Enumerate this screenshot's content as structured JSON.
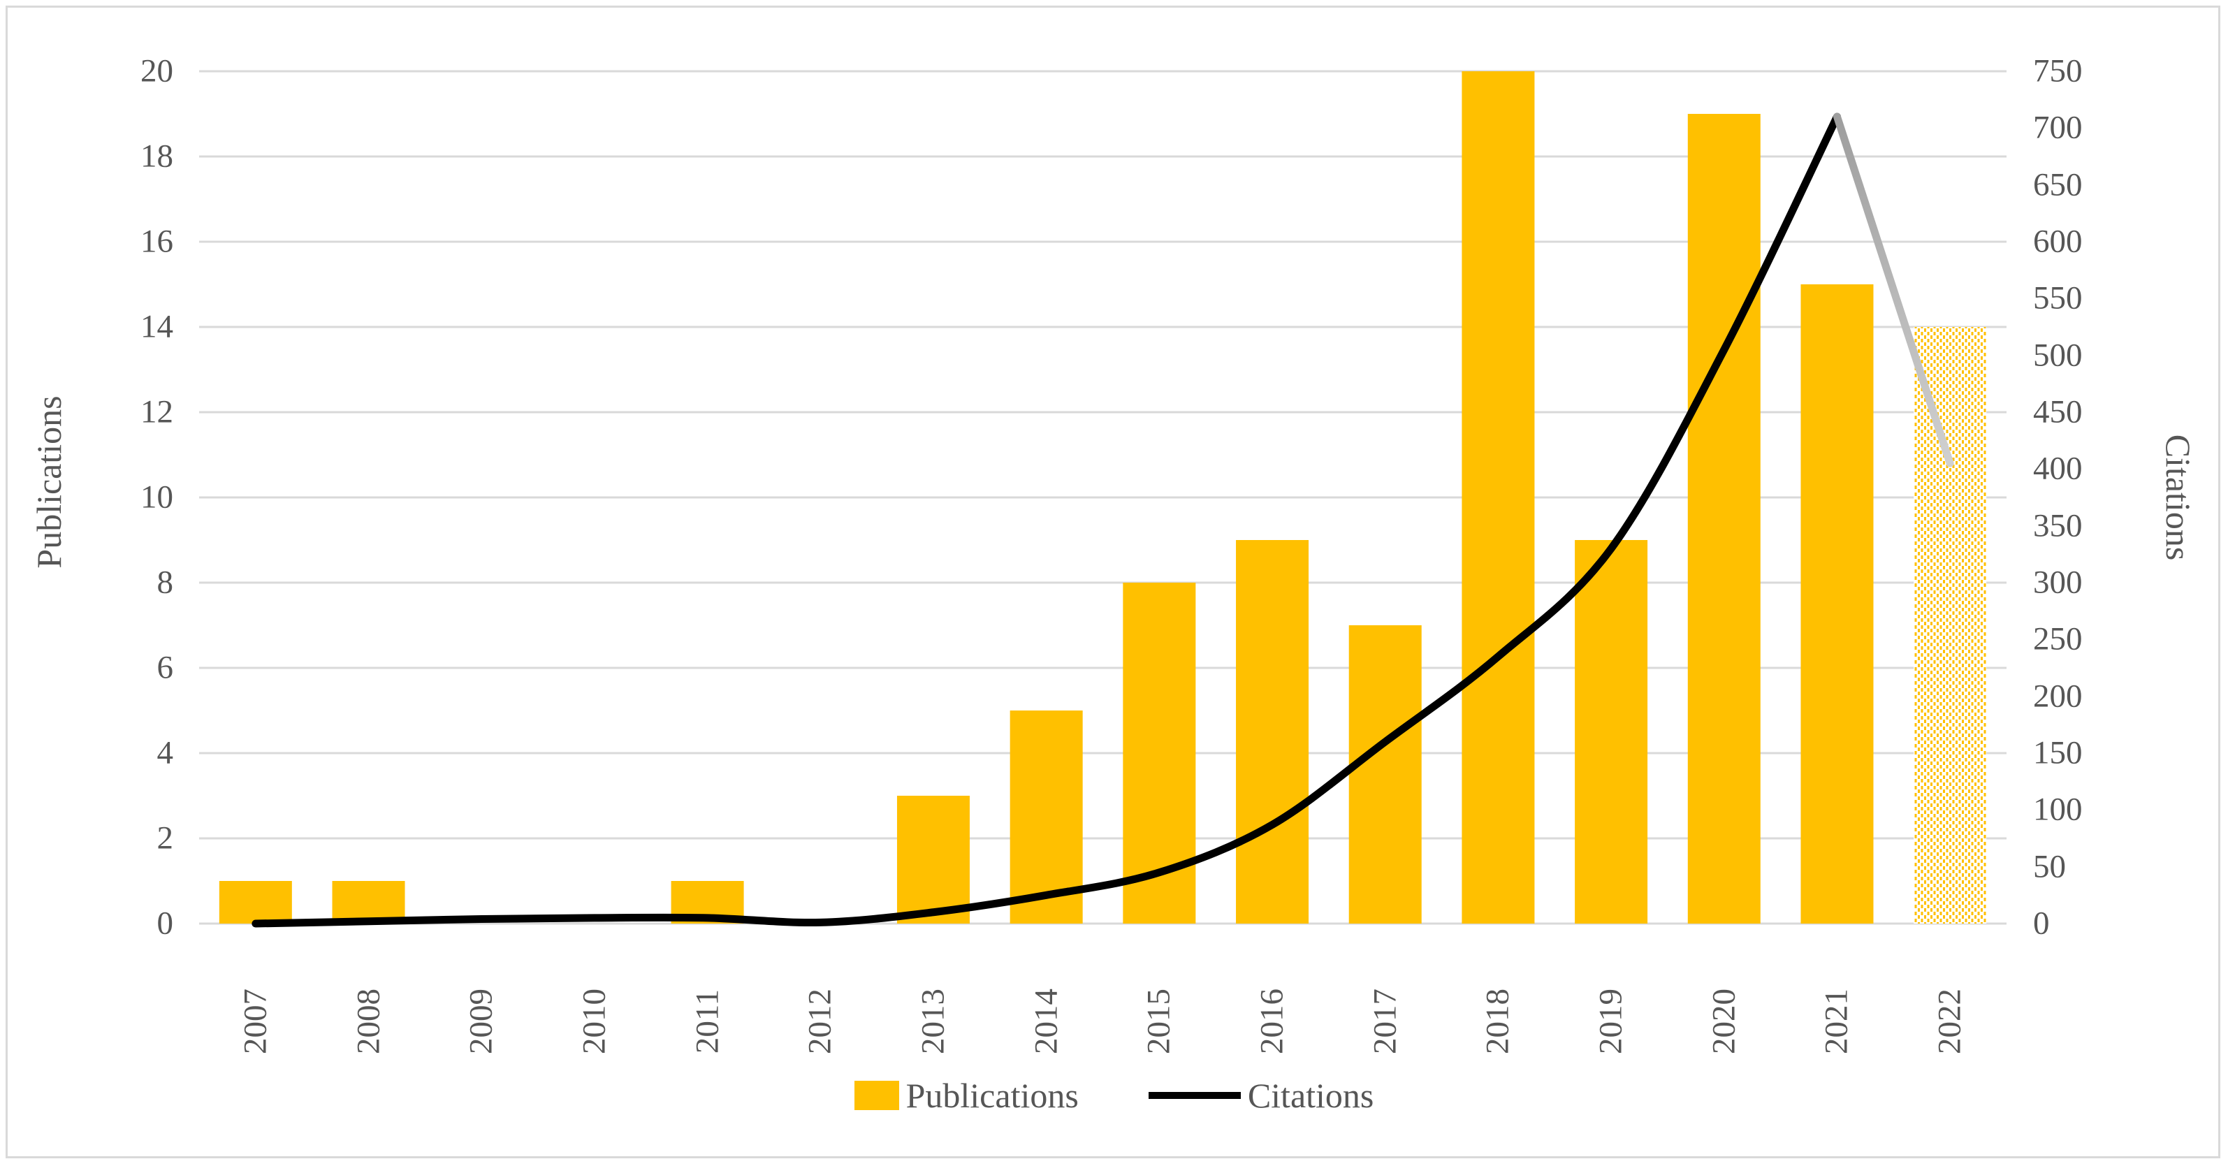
{
  "figure": {
    "background": "#FFFFFF",
    "border_color": "#D9D9D9"
  },
  "chart_data": {
    "type": "bar+line",
    "categories": [
      "2007",
      "2008",
      "2009",
      "2010",
      "2011",
      "2012",
      "2013",
      "2014",
      "2015",
      "2016",
      "2017",
      "2018",
      "2019",
      "2020",
      "2021",
      "2022"
    ],
    "series": [
      {
        "name": "Publications",
        "type": "bar",
        "axis": "left",
        "color": "#FFC000",
        "values": [
          1,
          1,
          0,
          0,
          1,
          0,
          3,
          5,
          8,
          9,
          7,
          20,
          9,
          19,
          15,
          14
        ],
        "last_bar_pattern_fill": true
      },
      {
        "name": "Citations",
        "type": "line",
        "axis": "right",
        "color": "#000000",
        "values": [
          0,
          2,
          4,
          5,
          5,
          1,
          10,
          25,
          45,
          87,
          160,
          235,
          330,
          505,
          710,
          405
        ],
        "final_segment_color": "#9E9E9E",
        "final_segment_fade_to": "#D0D0D0",
        "final_segment_from_category": "2021"
      }
    ],
    "left_axis": {
      "title": "Publications",
      "min": 0,
      "max": 20,
      "tick_step": 2,
      "ticks": [
        "0",
        "2",
        "4",
        "6",
        "8",
        "10",
        "12",
        "14",
        "16",
        "18",
        "20"
      ]
    },
    "right_axis": {
      "title": "Citations",
      "min": 0,
      "max": 750,
      "tick_step": 50,
      "ticks": [
        "0",
        "50",
        "100",
        "150",
        "200",
        "250",
        "300",
        "350",
        "400",
        "450",
        "500",
        "550",
        "600",
        "650",
        "700",
        "750"
      ]
    },
    "legend": {
      "position": "bottom-center",
      "items": [
        {
          "label": "Publications",
          "marker": "square",
          "color": "#FFC000"
        },
        {
          "label": "Citations",
          "marker": "line",
          "color": "#000000"
        }
      ]
    },
    "grid": {
      "horizontal": true,
      "color": "#D9D9D9"
    },
    "text_color": "#565656"
  }
}
